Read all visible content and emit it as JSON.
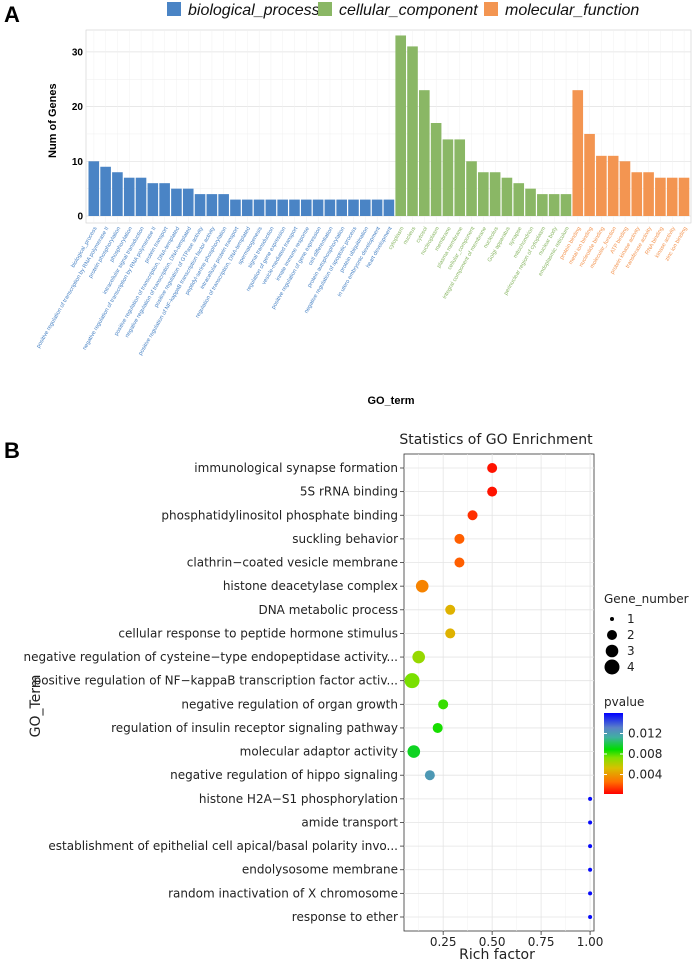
{
  "panel_a": {
    "letter": "A",
    "legend": [
      {
        "name": "biological_process",
        "color": "#4A84C5"
      },
      {
        "name": "cellular_component",
        "color": "#8AB765"
      },
      {
        "name": "molecular_function",
        "color": "#F39551"
      }
    ]
  },
  "panel_b": {
    "letter": "B"
  },
  "chart_data": [
    {
      "type": "bar",
      "title": "",
      "xlabel": "GO_term",
      "ylabel": "Num of Genes",
      "ylim": [
        0,
        34
      ],
      "yticks": [
        0,
        10,
        20,
        30
      ],
      "series": [
        {
          "name": "biological_process",
          "color": "#4A84C5",
          "categories": [
            "biological_process",
            "positive regulation of transcription by RNA polymerase II",
            "protein phosphorylation",
            "phosphorylation",
            "intracellular signal transduction",
            "negative regulation of transcription by RNA polymerase II",
            "protein transport",
            "positive regulation of transcription, DNA-templated",
            "negative regulation of transcription, DNA-templated",
            "positive regulation of GTPase activity",
            "positive regulation of NF-kappaB transcription factor activity",
            "peptidyl-serine phosphorylation",
            "intracellular protein transport",
            "regulation of transcription, DNA-templated",
            "spermatogenesis",
            "signal transduction",
            "regulation of gene expression",
            "vesicle-mediated transport",
            "innate immune response",
            "positive regulation of gene expression",
            "cell differentiation",
            "protein autophosphorylation",
            "negative regulation of apoptotic process",
            "protein ubiquitination",
            "in utero embryonic development",
            "heart development"
          ],
          "values": [
            10,
            9,
            8,
            7,
            7,
            6,
            6,
            5,
            5,
            4,
            4,
            4,
            3,
            3,
            3,
            3,
            3,
            3,
            3,
            3,
            3,
            3,
            3,
            3,
            3,
            3
          ]
        },
        {
          "name": "cellular_component",
          "color": "#8AB765",
          "categories": [
            "cytoplasm",
            "nucleus",
            "cytosol",
            "nucleoplasm",
            "membrane",
            "plasma membrane",
            "cellular_component",
            "integral component of membrane",
            "nucleolus",
            "Golgi apparatus",
            "synapse",
            "mitochondrion",
            "perinuclear region of cytoplasm",
            "nuclear body",
            "endoplasmic reticulum"
          ],
          "values": [
            33,
            31,
            23,
            17,
            14,
            14,
            10,
            8,
            8,
            7,
            6,
            5,
            4,
            4,
            4
          ]
        },
        {
          "name": "molecular_function",
          "color": "#F39551",
          "categories": [
            "protein binding",
            "metal ion binding",
            "nucleotide binding",
            "molecular_function",
            "ATP binding",
            "protein kinase activity",
            "transferase activity",
            "RNA binding",
            "kinase activity",
            "zinc ion binding"
          ],
          "values": [
            23,
            15,
            11,
            11,
            10,
            8,
            8,
            7,
            7,
            7
          ]
        }
      ]
    },
    {
      "type": "scatter",
      "title": "Statistics of GO Enrichment",
      "xlabel": "Rich factor",
      "ylabel": "GO_Term",
      "xlim": [
        0.05,
        1.02
      ],
      "xticks": [
        0.25,
        0.5,
        0.75,
        1.0
      ],
      "xtick_labels": [
        "0.25",
        "0.50",
        "0.75",
        "1.00"
      ],
      "terms": [
        "immunological synapse formation",
        "5S rRNA binding",
        "phosphatidylinositol phosphate binding",
        "suckling behavior",
        "clathrin−coated vesicle membrane",
        "histone deacetylase complex",
        "DNA metabolic process",
        "cellular response to peptide hormone stimulus",
        "negative regulation of cysteine−type endopeptidase activity...",
        "positive regulation of NF−kappaB transcription factor activ...",
        "negative regulation of organ growth",
        "regulation of insulin receptor signaling pathway",
        "molecular adaptor activity",
        "negative regulation of hippo signaling",
        "histone H2A−S1 phosphorylation",
        "amide transport",
        "establishment of epithelial cell apical/basal polarity invo...",
        "endolysosome membrane",
        "random inactivation of X chromosome",
        "response to ether"
      ],
      "rich_factor": [
        0.5,
        0.5,
        0.4,
        0.333,
        0.333,
        0.143,
        0.286,
        0.286,
        0.125,
        0.091,
        0.25,
        0.222,
        0.1,
        0.182,
        1.0,
        1.0,
        1.0,
        1.0,
        1.0,
        1.0
      ],
      "gene_number": [
        2,
        2,
        2,
        2,
        2,
        3,
        2,
        2,
        3,
        4,
        2,
        2,
        3,
        2,
        1,
        1,
        1,
        1,
        1,
        1
      ],
      "pvalue": [
        0.0006,
        0.0006,
        0.0012,
        0.0022,
        0.0022,
        0.0032,
        0.0048,
        0.0048,
        0.0068,
        0.0074,
        0.0082,
        0.0086,
        0.0094,
        0.0122,
        0.0158,
        0.0158,
        0.0158,
        0.0158,
        0.0158,
        0.0158
      ],
      "size_legend": {
        "title": "Gene_number",
        "labels": [
          "1",
          "2",
          "3",
          "4"
        ]
      },
      "color_legend": {
        "title": "pvalue",
        "range": [
          0.0002,
          0.016
        ],
        "ticks": [
          0.012,
          0.008,
          0.004
        ],
        "tick_labels": [
          "0.012",
          "0.008",
          "0.004"
        ],
        "colors_low_to_high": [
          "#FF0000",
          "#FF8000",
          "#D4C000",
          "#80E000",
          "#00DD00",
          "#40B0A0",
          "#5A80C8",
          "#0000FF"
        ]
      }
    }
  ]
}
